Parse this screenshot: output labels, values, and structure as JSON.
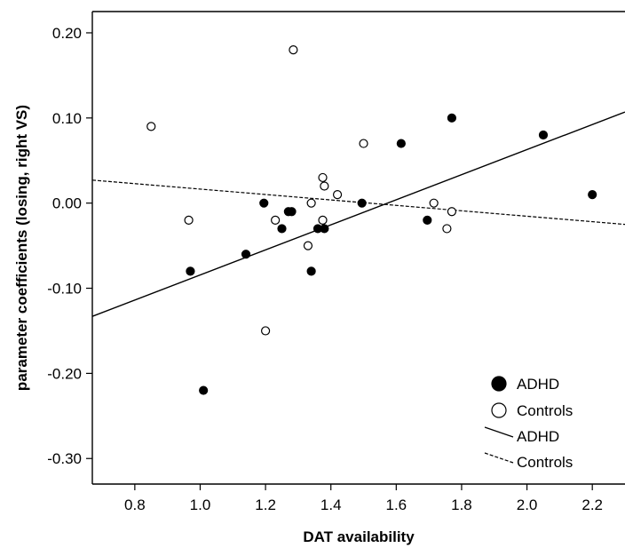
{
  "chart_data": {
    "type": "scatter",
    "title": "",
    "xlabel": "DAT availability",
    "ylabel": "parameter coefficients (losing, right VS)",
    "xlim": [
      0.67,
      2.3
    ],
    "ylim": [
      -0.33,
      0.225
    ],
    "x_ticks": [
      "0.8",
      "1.0",
      "1.2",
      "1.4",
      "1.6",
      "1.8",
      "2.0",
      "2.2"
    ],
    "x_tick_values": [
      0.8,
      1.0,
      1.2,
      1.4,
      1.6,
      1.8,
      2.0,
      2.2
    ],
    "y_ticks": [
      "0.20",
      "0.10",
      "0.00",
      "-0.10",
      "-0.20",
      "-0.30"
    ],
    "y_tick_values": [
      0.2,
      0.1,
      0.0,
      -0.1,
      -0.2,
      -0.3
    ],
    "grid": false,
    "legend_position": "bottom-right",
    "series": [
      {
        "name": "ADHD",
        "marker": "filled-circle",
        "color": "#000000",
        "points": [
          [
            0.97,
            -0.08
          ],
          [
            1.01,
            -0.22
          ],
          [
            1.14,
            -0.06
          ],
          [
            1.195,
            0.0
          ],
          [
            1.25,
            -0.03
          ],
          [
            1.27,
            -0.01
          ],
          [
            1.28,
            -0.01
          ],
          [
            1.34,
            -0.08
          ],
          [
            1.36,
            -0.03
          ],
          [
            1.38,
            -0.03
          ],
          [
            1.495,
            0.0
          ],
          [
            1.615,
            0.07
          ],
          [
            1.695,
            -0.02
          ],
          [
            1.77,
            0.1
          ],
          [
            2.05,
            0.08
          ],
          [
            2.2,
            0.01
          ]
        ]
      },
      {
        "name": "Controls",
        "marker": "open-circle",
        "color": "#000000",
        "points": [
          [
            0.85,
            0.09
          ],
          [
            0.965,
            -0.02
          ],
          [
            1.2,
            -0.15
          ],
          [
            1.23,
            -0.02
          ],
          [
            1.285,
            0.18
          ],
          [
            1.33,
            -0.05
          ],
          [
            1.34,
            0.0
          ],
          [
            1.375,
            0.03
          ],
          [
            1.38,
            0.02
          ],
          [
            1.375,
            -0.02
          ],
          [
            1.42,
            0.01
          ],
          [
            1.5,
            0.07
          ],
          [
            1.715,
            0.0
          ],
          [
            1.755,
            -0.03
          ],
          [
            1.77,
            -0.01
          ]
        ]
      }
    ],
    "fit_lines": [
      {
        "name": "ADHD",
        "style": "solid",
        "x": [
          0.67,
          2.3
        ],
        "y": [
          -0.133,
          0.107
        ]
      },
      {
        "name": "Controls",
        "style": "dashed",
        "x": [
          0.67,
          2.3
        ],
        "y": [
          0.027,
          -0.025
        ]
      }
    ],
    "legend": [
      {
        "label": "ADHD",
        "type": "filled-circle"
      },
      {
        "label": "Controls",
        "type": "open-circle"
      },
      {
        "label": "ADHD",
        "type": "solid-line"
      },
      {
        "label": "Controls",
        "type": "dashed-line"
      }
    ]
  }
}
